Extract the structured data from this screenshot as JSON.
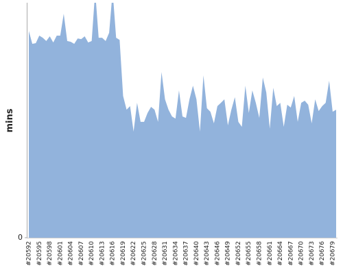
{
  "chart_data": {
    "type": "area",
    "y_label": "mins",
    "color": "#92b3dc",
    "categories": [
      "#20592",
      null,
      null,
      "#20595",
      null,
      null,
      "#20598",
      null,
      null,
      "#20601",
      null,
      null,
      "#20604",
      null,
      null,
      "#20607",
      null,
      null,
      "#20610",
      null,
      null,
      "#20613",
      null,
      null,
      "#20616",
      null,
      null,
      "#20619",
      null,
      null,
      "#20622",
      null,
      null,
      "#20625",
      null,
      null,
      "#20628",
      null,
      null,
      "#20631",
      null,
      null,
      "#20634",
      null,
      null,
      "#20637",
      null,
      null,
      "#20640",
      null,
      null,
      "#20643",
      null,
      null,
      "#20646",
      null,
      null,
      "#20649",
      null,
      null,
      "#20652",
      null,
      null,
      "#20655",
      null,
      null,
      "#20658",
      null,
      null,
      "#20661",
      null,
      null,
      "#20664",
      null,
      null,
      "#20667",
      null,
      null,
      "#20670",
      null,
      null,
      "#20673",
      null,
      null,
      "#20676",
      null,
      null,
      "#20679",
      null
    ],
    "values": [
      88.0,
      82.5,
      82.8,
      86.0,
      85.1,
      83.7,
      85.7,
      83.1,
      86.0,
      86.0,
      95.3,
      83.7,
      83.4,
      82.5,
      84.8,
      84.5,
      85.7,
      83.1,
      83.7,
      105,
      85.1,
      85.1,
      83.7,
      87.2,
      105,
      85.1,
      84.2,
      60.3,
      54.5,
      56.0,
      45.2,
      57.4,
      49.3,
      49.3,
      53.1,
      55.7,
      54.5,
      49.3,
      70.5,
      58.9,
      54.5,
      51.6,
      50.7,
      62.7,
      51.6,
      51.0,
      58.9,
      64.7,
      58.9,
      45.2,
      69.1,
      55.1,
      53.6,
      48.7,
      56.0,
      57.4,
      58.9,
      47.8,
      54.5,
      59.8,
      49.3,
      47.2,
      64.7,
      53.1,
      62.7,
      57.4,
      51.0,
      68.2,
      61.8,
      46.4,
      63.8,
      56.0,
      57.4,
      47.2,
      56.6,
      55.4,
      60.3,
      49.3,
      57.4,
      58.3,
      56.6,
      48.7,
      58.9,
      53.9,
      56.0,
      57.4,
      66.8,
      53.6,
      54.5
    ],
    "ylim": [
      0,
      100
    ],
    "yticks": [
      0
    ]
  }
}
